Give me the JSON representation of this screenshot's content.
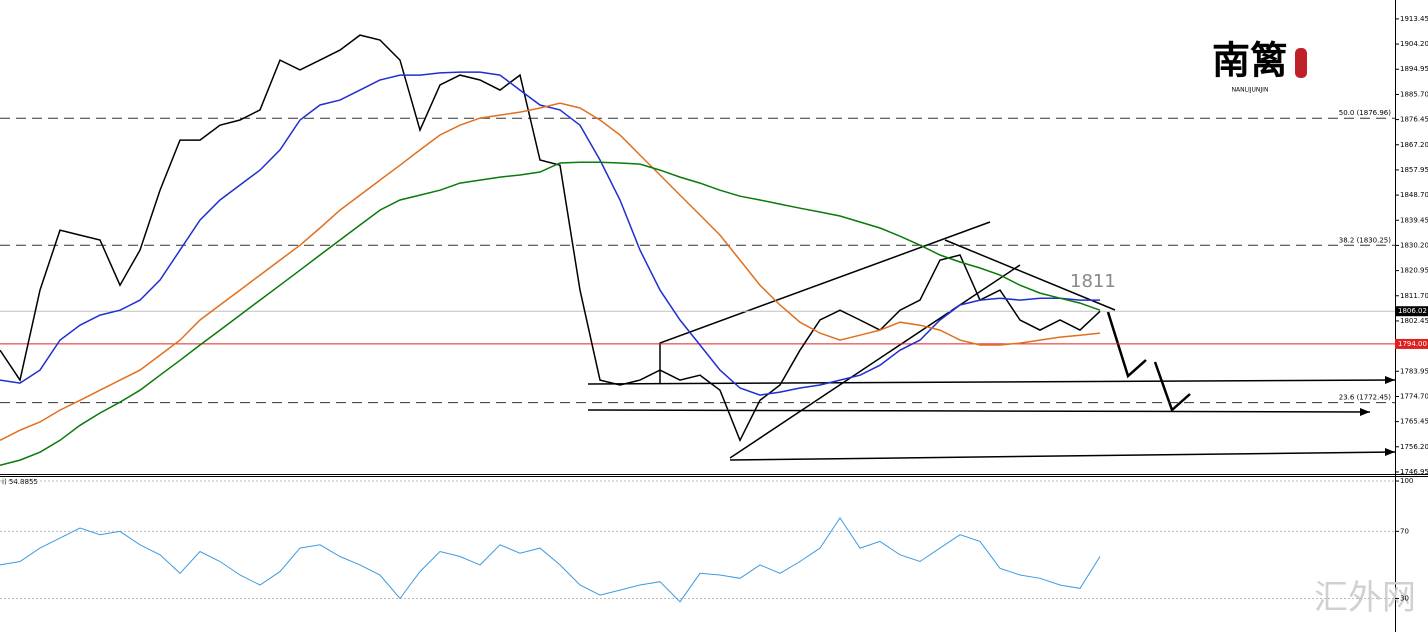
{
  "chart_data": [
    {
      "type": "line",
      "annotations": [
        "1811"
      ],
      "series": [
        {
          "color": "#000000",
          "values": [
            1791.7,
            1780.7,
            1813.8,
            1835.8,
            1834.0,
            1832.2,
            1815.6,
            1828.5,
            1850.5,
            1868.9,
            1868.9,
            1874.4,
            1876.3,
            1880.0,
            1898.3,
            1894.7,
            1898.3,
            1902.0,
            1907.5,
            1905.7,
            1898.3,
            1872.6,
            1889.2,
            1892.8,
            1891.0,
            1887.3,
            1892.8,
            1861.6,
            1859.7,
            1813.8,
            1780.7,
            1778.9,
            1780.7,
            1784.4,
            1780.7,
            1782.5,
            1777.0,
            1758.6,
            1773.3,
            1778.9,
            1791.7,
            1802.8,
            1806.4,
            1802.8,
            1799.1,
            1806.4,
            1810.1,
            1824.8,
            1826.7,
            1810.1,
            1813.8,
            1802.8,
            1799.1,
            1802.8,
            1799.1,
            1806.0
          ]
        },
        {
          "color": "#1f2fd0",
          "values": [
            1780.7,
            1779.6,
            1784.4,
            1795.4,
            1800.9,
            1804.6,
            1806.4,
            1810.1,
            1817.5,
            1828.5,
            1839.5,
            1846.9,
            1852.4,
            1857.9,
            1865.3,
            1876.3,
            1881.8,
            1883.6,
            1887.3,
            1891.0,
            1892.8,
            1892.8,
            1893.6,
            1893.9,
            1893.9,
            1892.8,
            1887.3,
            1881.8,
            1880.0,
            1874.4,
            1861.6,
            1846.9,
            1828.5,
            1813.8,
            1802.8,
            1793.6,
            1784.4,
            1777.8,
            1775.2,
            1776.3,
            1777.8,
            1778.9,
            1780.7,
            1782.5,
            1786.2,
            1791.7,
            1795.4,
            1802.8,
            1808.3,
            1810.1,
            1810.8,
            1810.1,
            1810.8,
            1810.8,
            1810.1,
            1810.1
          ]
        },
        {
          "color": "#e07020",
          "values": [
            1758.6,
            1762.3,
            1765.3,
            1769.7,
            1773.3,
            1777.0,
            1780.7,
            1784.4,
            1789.9,
            1795.4,
            1802.8,
            1808.3,
            1813.8,
            1819.3,
            1824.8,
            1830.3,
            1836.6,
            1843.2,
            1848.7,
            1854.2,
            1859.7,
            1865.3,
            1870.8,
            1874.4,
            1877.0,
            1878.1,
            1879.2,
            1880.7,
            1882.5,
            1880.7,
            1876.3,
            1870.8,
            1863.4,
            1856.1,
            1848.7,
            1841.4,
            1834.0,
            1824.8,
            1815.6,
            1808.3,
            1802.0,
            1798.0,
            1795.4,
            1797.2,
            1799.1,
            1802.0,
            1800.9,
            1799.1,
            1795.4,
            1793.6,
            1793.6,
            1794.3,
            1795.4,
            1796.5,
            1797.2,
            1798.0
          ]
        },
        {
          "color": "#0a7a0a",
          "values": [
            1749.4,
            1751.3,
            1754.2,
            1758.6,
            1764.1,
            1768.6,
            1772.6,
            1777.0,
            1782.5,
            1788.0,
            1793.6,
            1799.1,
            1804.6,
            1810.1,
            1815.6,
            1821.1,
            1826.7,
            1832.2,
            1837.7,
            1843.2,
            1846.9,
            1848.7,
            1850.5,
            1853.1,
            1854.2,
            1855.3,
            1856.1,
            1857.2,
            1860.5,
            1860.8,
            1860.8,
            1860.5,
            1860.1,
            1857.9,
            1855.3,
            1853.1,
            1850.5,
            1848.3,
            1846.9,
            1845.4,
            1843.9,
            1842.5,
            1841.0,
            1838.8,
            1836.6,
            1833.6,
            1830.3,
            1826.7,
            1824.1,
            1821.9,
            1819.3,
            1815.6,
            1812.7,
            1810.8,
            1809.0,
            1806.4
          ]
        }
      ],
      "ylim": [
        1746.2,
        1920.4
      ],
      "yticks": [
        1913.45,
        {
          "value": 1904.2,
          "label": "1904.20"
        },
        1894.95,
        {
          "value": 1885.7,
          "label": "1885.70"
        },
        1876.45,
        {
          "value": 1867.2,
          "label": "1867.20"
        },
        1857.95,
        {
          "value": 1848.7,
          "label": "1848.70"
        },
        1839.45,
        {
          "value": 1830.2,
          "label": "1830.20"
        },
        1820.95,
        {
          "value": 1811.7,
          "label": "1811.70"
        },
        1802.45,
        1783.95,
        {
          "value": 1774.7,
          "label": "1774.70"
        },
        1765.45,
        {
          "value": 1756.2,
          "label": "1756.20"
        },
        1746.95
      ],
      "levels": [
        {
          "value": 1876.96,
          "label": "50.0 (1876.96)"
        },
        {
          "value": 1830.25,
          "label": "38.2 (1830.25)"
        },
        {
          "value": 1772.45,
          "label": "23.6 (1772.45)"
        }
      ],
      "current_price": 1806.02,
      "support": {
        "value": 1794,
        "label": "1794.00"
      }
    },
    {
      "type": "line",
      "title": "i) 54.8855",
      "series": [
        {
          "color": "#3c9be0",
          "values": [
            50,
            52,
            60,
            66,
            72,
            68,
            70,
            62,
            56,
            45,
            58,
            52,
            44,
            38,
            46,
            60,
            62,
            55,
            50,
            44,
            30,
            46,
            58,
            55,
            50,
            62,
            57,
            60,
            50,
            38,
            32,
            35,
            38,
            40,
            28,
            45,
            44,
            42,
            50,
            45,
            52,
            60,
            78,
            60,
            64,
            56,
            52,
            60,
            68,
            64,
            48,
            44,
            42,
            38,
            36,
            55
          ]
        }
      ],
      "ylim": [
        10,
        102.4
      ],
      "yticks": [
        100,
        70,
        30
      ]
    }
  ],
  "logo": {
    "title": "南篱",
    "subtitle": "NANLIJUNJIN"
  },
  "watermark": "汇外网"
}
